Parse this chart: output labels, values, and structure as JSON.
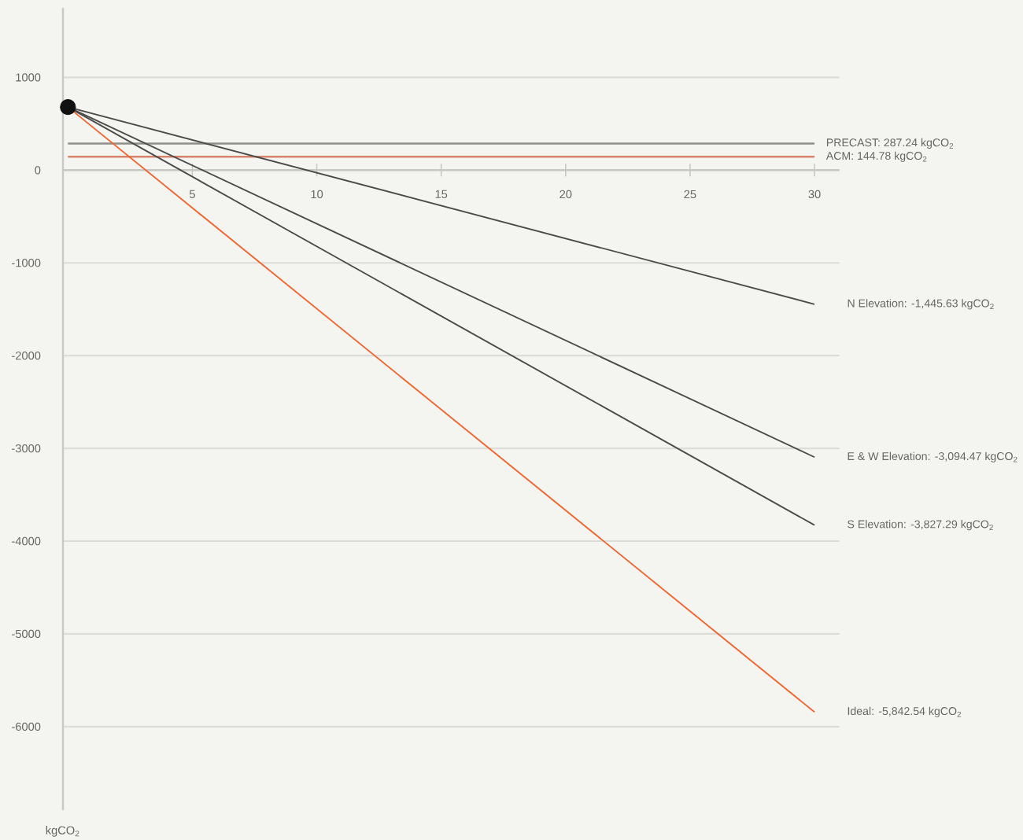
{
  "chart_data": {
    "type": "line",
    "x": [
      0,
      30
    ],
    "xlim": [
      -0.2,
      31
    ],
    "ylim": [
      -6900,
      1750
    ],
    "xticks": [
      5,
      10,
      15,
      20,
      25,
      30
    ],
    "yticks": [
      -6000,
      -5000,
      -4000,
      -3000,
      -2000,
      -1000,
      0,
      1000
    ],
    "ylabel": "kgCO$_{2}$",
    "grid": "y",
    "series": [
      {
        "name": "N Elevation: -1,445.63 kgCO$_{2}$",
        "color": "#4a4a4a",
        "values": [
          680,
          -1445.63
        ]
      },
      {
        "name": "E & W Elevation: -3,094.47 kgCO$_{2}$",
        "color": "#4a4a4a",
        "values": [
          680,
          -3094.47
        ]
      },
      {
        "name": "S Elevation: -3,827.29 kgCO$_{2}$",
        "color": "#4a4a4a",
        "values": [
          680,
          -3827.29
        ]
      },
      {
        "name": "Ideal: -5,842.54 kgCO$_{2}$",
        "color": "#f0642d",
        "values": [
          680,
          -5842.54
        ]
      },
      {
        "type": "scatter",
        "x": [
          0
        ],
        "values": [
          680
        ],
        "color": "#111111",
        "marker": "circle"
      }
    ],
    "ref_lines": [
      {
        "axis": "y",
        "value": 287.24,
        "label": "PRECAST: 287.24 kgCO$_{2}$",
        "color": "#8e8e8a"
      },
      {
        "axis": "y",
        "value": 144.78,
        "label": "ACM: 144.78 kgCO$_{2}$",
        "color": "#d9826a"
      }
    ]
  }
}
